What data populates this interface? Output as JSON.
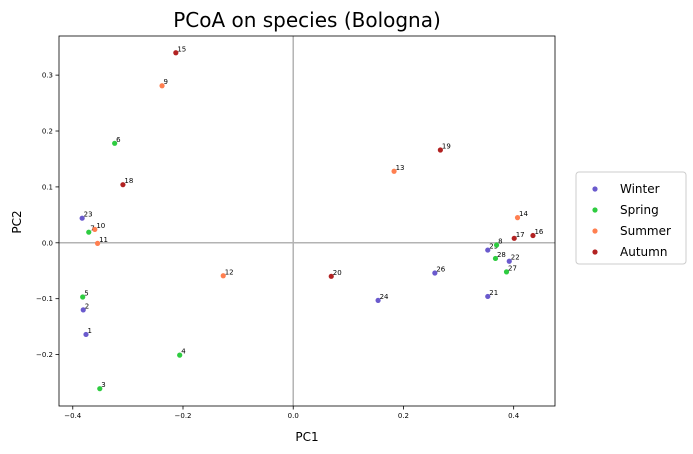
{
  "chart_data": {
    "type": "scatter",
    "title": "PCoA on species (Bologna)",
    "xlabel": "PC1",
    "ylabel": "PC2",
    "xlim": [
      -0.425,
      0.475
    ],
    "ylim": [
      -0.292,
      0.37
    ],
    "xticks": [
      -0.4,
      -0.2,
      0.0,
      0.2,
      0.4
    ],
    "xtick_labels": [
      "−0.4",
      "−0.2",
      "0.0",
      "0.2",
      "0.4"
    ],
    "yticks": [
      -0.2,
      -0.1,
      0.0,
      0.1,
      0.2,
      0.3
    ],
    "ytick_labels": [
      "−0.2",
      "−0.1",
      "0.0",
      "0.1",
      "0.2",
      "0.3"
    ],
    "grid": false,
    "reference_lines": {
      "x": 0,
      "y": 0
    },
    "legend_position": "outside-right",
    "series": [
      {
        "name": "Winter",
        "color": "#6a5acd",
        "points": [
          {
            "label": "1",
            "x": -0.376,
            "y": -0.164
          },
          {
            "label": "2",
            "x": -0.381,
            "y": -0.12
          },
          {
            "label": "23",
            "x": -0.383,
            "y": 0.044
          },
          {
            "label": "24",
            "x": 0.154,
            "y": -0.103
          },
          {
            "label": "26",
            "x": 0.257,
            "y": -0.054
          },
          {
            "label": "21",
            "x": 0.353,
            "y": -0.096
          },
          {
            "label": "25",
            "x": 0.353,
            "y": -0.013
          },
          {
            "label": "22",
            "x": 0.392,
            "y": -0.033
          }
        ]
      },
      {
        "name": "Spring",
        "color": "#2ecc40",
        "points": [
          {
            "label": "3",
            "x": -0.351,
            "y": -0.261
          },
          {
            "label": "4",
            "x": -0.206,
            "y": -0.201
          },
          {
            "label": "5",
            "x": -0.382,
            "y": -0.097
          },
          {
            "label": "6",
            "x": -0.324,
            "y": 0.178
          },
          {
            "label": "7",
            "x": -0.371,
            "y": 0.019
          },
          {
            "label": "8",
            "x": 0.369,
            "y": -0.004
          },
          {
            "label": "28",
            "x": 0.367,
            "y": -0.028
          },
          {
            "label": "27",
            "x": 0.387,
            "y": -0.052
          }
        ]
      },
      {
        "name": "Summer",
        "color": "#ff7f50",
        "points": [
          {
            "label": "9",
            "x": -0.238,
            "y": 0.281
          },
          {
            "label": "10",
            "x": -0.36,
            "y": 0.024
          },
          {
            "label": "11",
            "x": -0.355,
            "y": -0.001
          },
          {
            "label": "12",
            "x": -0.127,
            "y": -0.059
          },
          {
            "label": "13",
            "x": 0.183,
            "y": 0.128
          },
          {
            "label": "14",
            "x": 0.407,
            "y": 0.045
          }
        ]
      },
      {
        "name": "Autumn",
        "color": "#b22222",
        "points": [
          {
            "label": "15",
            "x": -0.213,
            "y": 0.34
          },
          {
            "label": "18",
            "x": -0.309,
            "y": 0.104
          },
          {
            "label": "19",
            "x": 0.267,
            "y": 0.166
          },
          {
            "label": "20",
            "x": 0.069,
            "y": -0.06
          },
          {
            "label": "17",
            "x": 0.401,
            "y": 0.008
          },
          {
            "label": "16",
            "x": 0.435,
            "y": 0.013
          }
        ]
      }
    ]
  }
}
